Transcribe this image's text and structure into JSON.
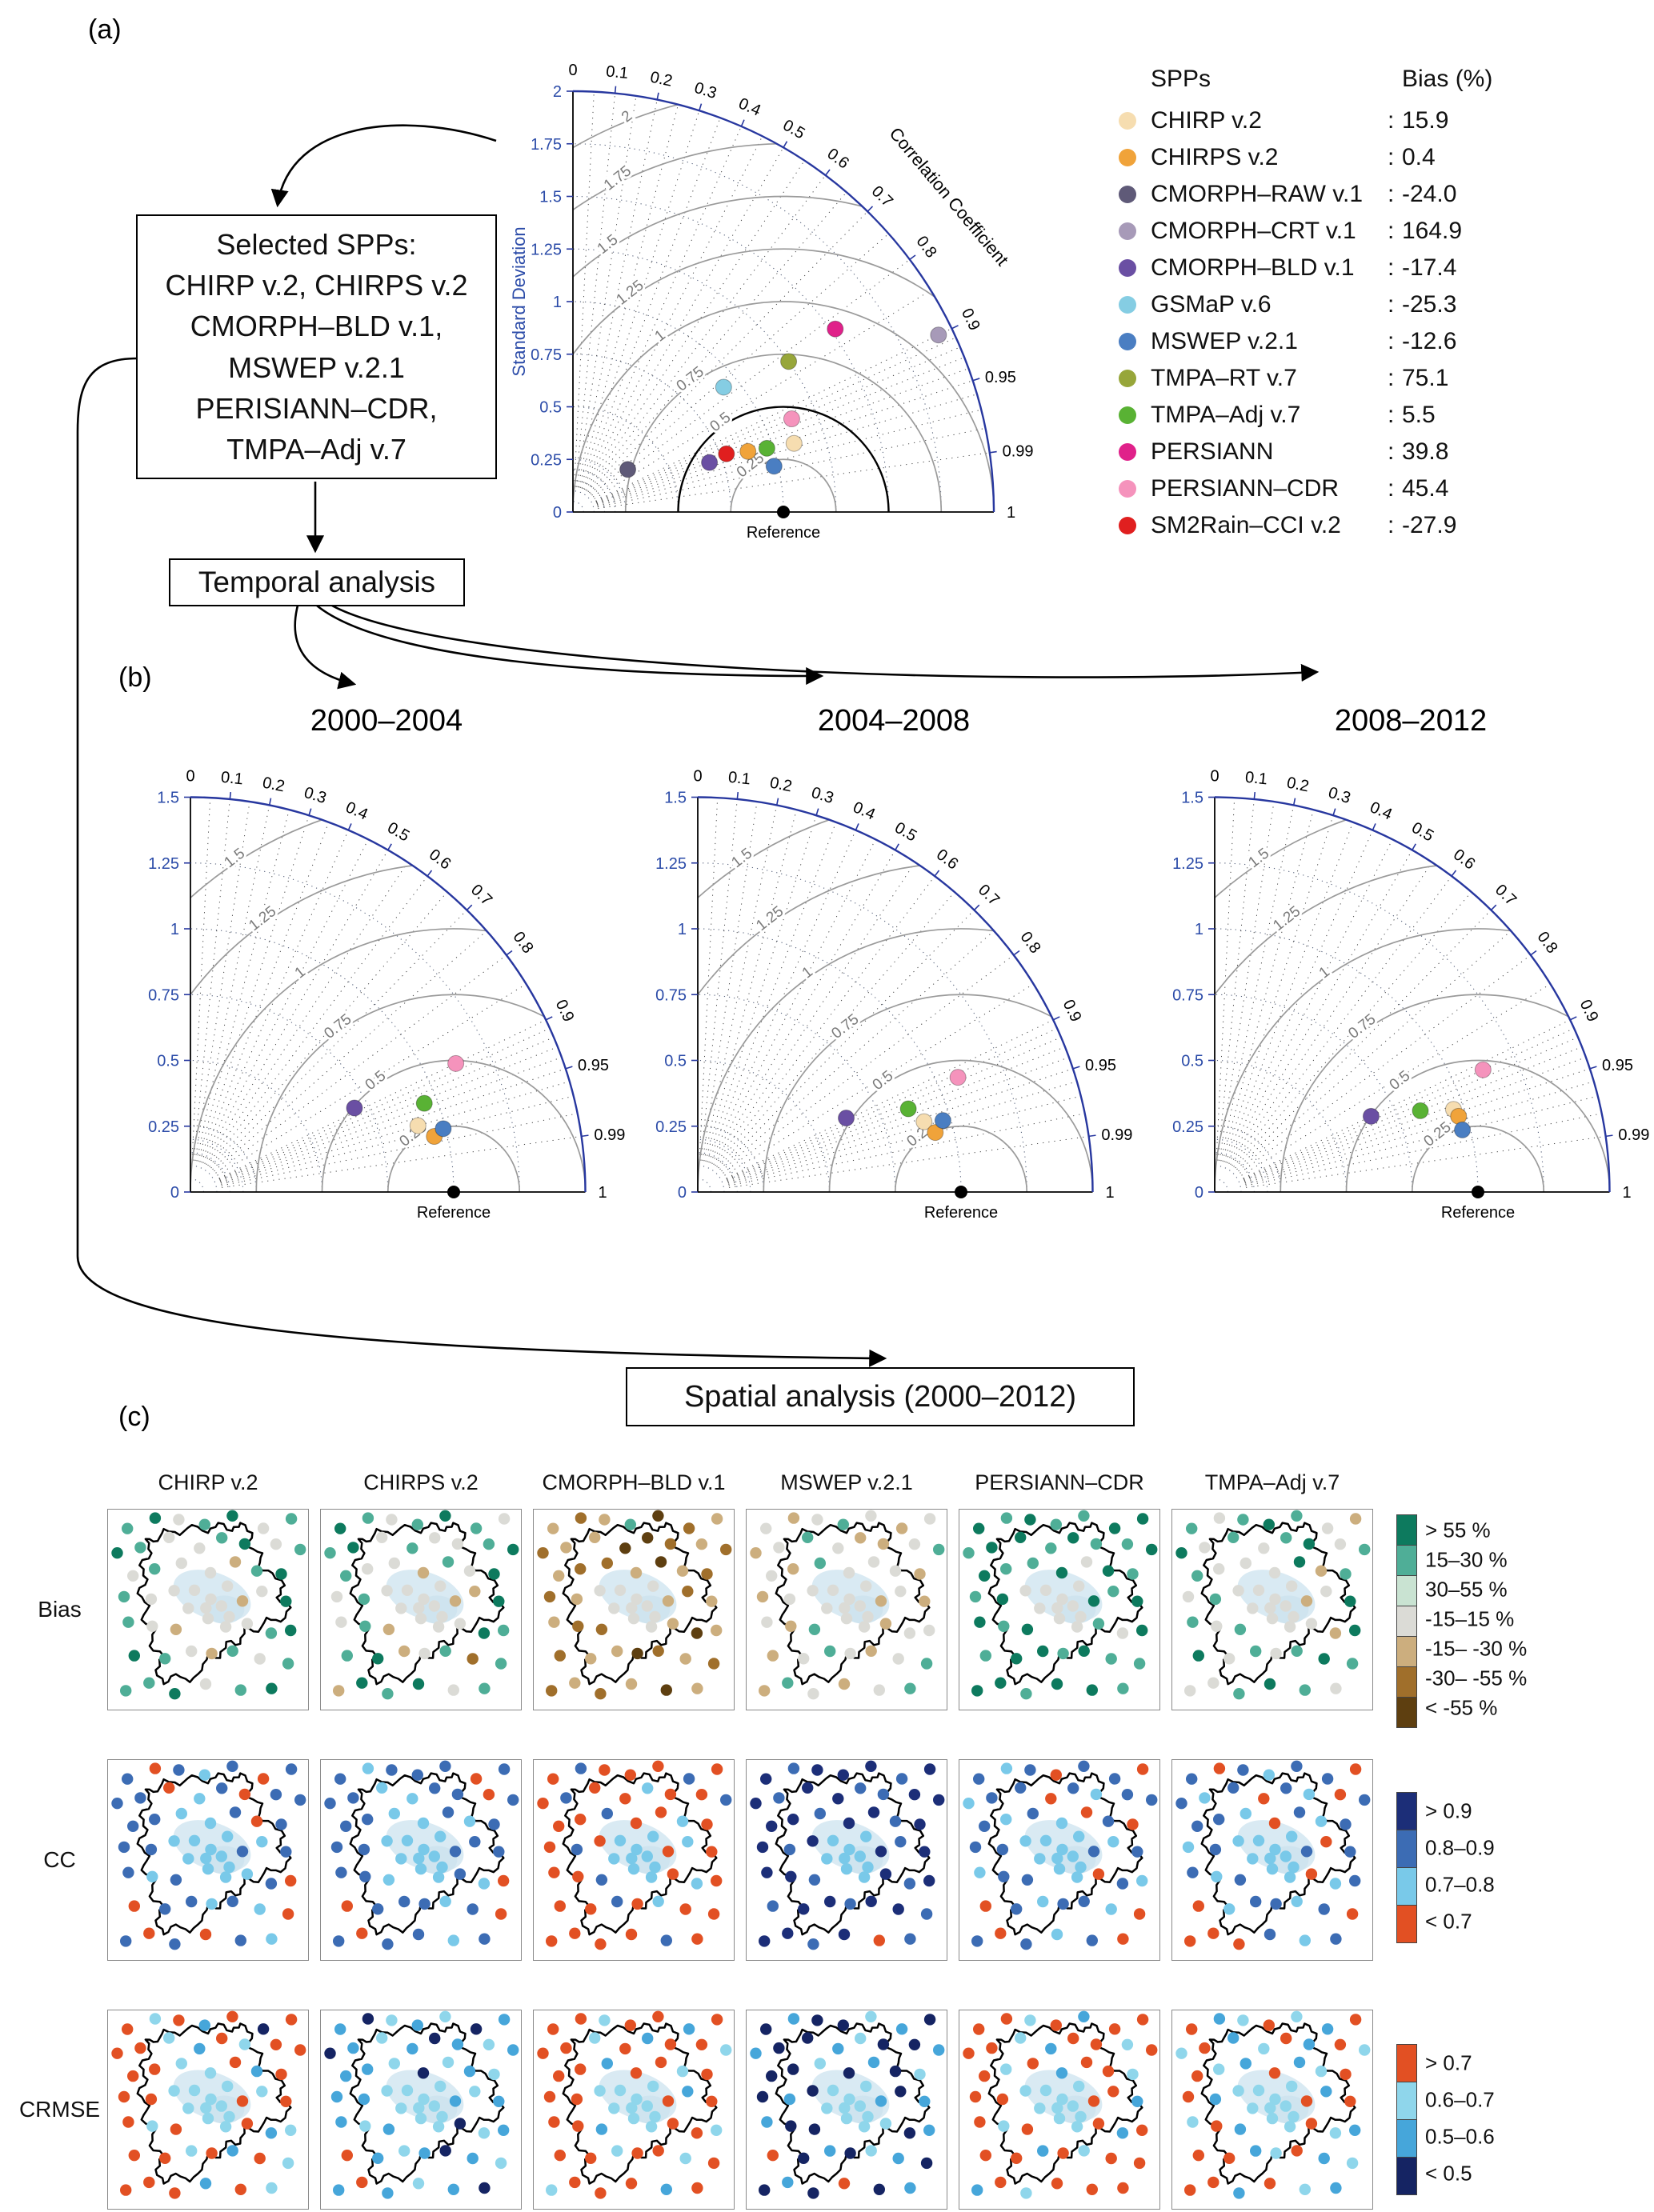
{
  "panel_a": {
    "label": "(a)",
    "selected_box_lines": [
      "Selected SPPs:",
      "CHIRP v.2, CHIRPS v.2",
      "CMORPH–BLD v.1,",
      "MSWEP v.2.1",
      "PERISIANN–CDR,",
      "TMPA–Adj v.7"
    ],
    "temporal_box": "Temporal analysis",
    "legend": {
      "header_spps": "SPPs",
      "header_bias": "Bias (%)",
      "separator": ":",
      "items": [
        {
          "name": "CHIRP v.2",
          "bias": "15.9",
          "color": "#f6ddb0"
        },
        {
          "name": "CHIRPS v.2",
          "bias": "0.4",
          "color": "#f0a33a"
        },
        {
          "name": "CMORPH–RAW v.1",
          "bias": "-24.0",
          "color": "#5f5a78"
        },
        {
          "name": "CMORPH–CRT v.1",
          "bias": "164.9",
          "color": "#a79ab8"
        },
        {
          "name": "CMORPH–BLD v.1",
          "bias": "-17.4",
          "color": "#6a4fa3"
        },
        {
          "name": "GSMaP v.6",
          "bias": "-25.3",
          "color": "#85cde3"
        },
        {
          "name": "MSWEP v.2.1",
          "bias": "-12.6",
          "color": "#4a7ec2"
        },
        {
          "name": "TMPA–RT v.7",
          "bias": "75.1",
          "color": "#97a63a"
        },
        {
          "name": "TMPA–Adj v.7",
          "bias": "5.5",
          "color": "#59b234"
        },
        {
          "name": "PERSIANN",
          "bias": "39.8",
          "color": "#e0218a"
        },
        {
          "name": "PERSIANN–CDR",
          "bias": "45.4",
          "color": "#f593bc"
        },
        {
          "name": "SM2Rain–CCI v.2",
          "bias": "-27.9",
          "color": "#e01f1f"
        }
      ]
    }
  },
  "panel_b": {
    "label": "(b)"
  },
  "panel_c": {
    "label": "(c)",
    "spatial_box": "Spatial analysis (2000–2012)"
  },
  "chart_data": {
    "taylor_main": {
      "type": "scatter",
      "subtype": "taylor-diagram",
      "max_std": 2,
      "ref_std": 1,
      "std_ticks": [
        0,
        0.25,
        0.5,
        0.75,
        1,
        1.25,
        1.5,
        1.75,
        2
      ],
      "corr_ticks": [
        0,
        0.1,
        0.2,
        0.3,
        0.4,
        0.5,
        0.6,
        0.7,
        0.8,
        0.9,
        0.95,
        0.99,
        1
      ],
      "rms_arcs": [
        0.25,
        0.5,
        0.75,
        1,
        1.25,
        1.5,
        1.75,
        2
      ],
      "highlight_rms": 0.5,
      "axis_label_std": "Standard Deviation",
      "axis_label_corr": "Correlation Coefficient",
      "reference_label": "Reference",
      "points": [
        {
          "name": "CHIRP v.2",
          "std": 1.1,
          "corr": 0.955
        },
        {
          "name": "CHIRPS v.2",
          "std": 0.88,
          "corr": 0.945
        },
        {
          "name": "CMORPH–RAW v.1",
          "std": 0.33,
          "corr": 0.79
        },
        {
          "name": "CMORPH–CRT v.1",
          "std": 1.93,
          "corr": 0.9
        },
        {
          "name": "CMORPH–BLD v.1",
          "std": 0.69,
          "corr": 0.94
        },
        {
          "name": "GSMaP v.6",
          "std": 0.93,
          "corr": 0.77
        },
        {
          "name": "MSWEP v.2.1",
          "std": 0.98,
          "corr": 0.975
        },
        {
          "name": "TMPA–RT v.7",
          "std": 1.25,
          "corr": 0.82
        },
        {
          "name": "TMPA–Adj v.7",
          "std": 0.97,
          "corr": 0.95
        },
        {
          "name": "PERSIANN",
          "std": 1.52,
          "corr": 0.82
        },
        {
          "name": "PERSIANN–CDR",
          "std": 1.13,
          "corr": 0.92
        },
        {
          "name": "SM2Rain–CCI v.2",
          "std": 0.78,
          "corr": 0.935
        }
      ]
    },
    "taylor_periods": [
      {
        "title": "2000–2004",
        "type": "scatter",
        "subtype": "taylor-diagram",
        "max_std": 1.5,
        "ref_std": 1,
        "std_ticks": [
          0,
          0.25,
          0.5,
          0.75,
          1,
          1.25,
          1.5
        ],
        "corr_ticks": [
          0,
          0.1,
          0.2,
          0.3,
          0.4,
          0.5,
          0.6,
          0.7,
          0.8,
          0.9,
          0.95,
          0.99,
          1
        ],
        "rms_arcs": [
          0.25,
          0.5,
          0.75,
          1,
          1.25,
          1.5
        ],
        "reference_label": "Reference",
        "points": [
          {
            "name": "CHIRP v.2",
            "std": 0.9,
            "corr": 0.96
          },
          {
            "name": "CHIRPS v.2",
            "std": 0.95,
            "corr": 0.975
          },
          {
            "name": "CMORPH–BLD v.1",
            "std": 0.7,
            "corr": 0.89
          },
          {
            "name": "MSWEP v.2.1",
            "std": 0.99,
            "corr": 0.97
          },
          {
            "name": "PERSIANN–CDR",
            "std": 1.12,
            "corr": 0.9
          },
          {
            "name": "TMPA–Adj v.7",
            "std": 0.95,
            "corr": 0.935
          }
        ]
      },
      {
        "title": "2004–2008",
        "type": "scatter",
        "subtype": "taylor-diagram",
        "max_std": 1.5,
        "ref_std": 1,
        "std_ticks": [
          0,
          0.25,
          0.5,
          0.75,
          1,
          1.25,
          1.5
        ],
        "corr_ticks": [
          0,
          0.1,
          0.2,
          0.3,
          0.4,
          0.5,
          0.6,
          0.7,
          0.8,
          0.9,
          0.95,
          0.99,
          1
        ],
        "rms_arcs": [
          0.25,
          0.5,
          0.75,
          1,
          1.25,
          1.5
        ],
        "reference_label": "Reference",
        "points": [
          {
            "name": "CHIRP v.2",
            "std": 0.9,
            "corr": 0.955
          },
          {
            "name": "CHIRPS v.2",
            "std": 0.93,
            "corr": 0.97
          },
          {
            "name": "CMORPH–BLD v.1",
            "std": 0.63,
            "corr": 0.895
          },
          {
            "name": "MSWEP v.2.1",
            "std": 0.97,
            "corr": 0.96
          },
          {
            "name": "PERSIANN–CDR",
            "std": 1.08,
            "corr": 0.915
          },
          {
            "name": "TMPA–Adj v.7",
            "std": 0.86,
            "corr": 0.93
          }
        ]
      },
      {
        "title": "2008–2012",
        "type": "scatter",
        "subtype": "taylor-diagram",
        "max_std": 1.5,
        "ref_std": 1,
        "std_ticks": [
          0,
          0.25,
          0.5,
          0.75,
          1,
          1.25,
          1.5
        ],
        "corr_ticks": [
          0,
          0.1,
          0.2,
          0.3,
          0.4,
          0.5,
          0.6,
          0.7,
          0.8,
          0.9,
          0.95,
          0.99,
          1
        ],
        "rms_arcs": [
          0.25,
          0.5,
          0.75,
          1,
          1.25,
          1.5
        ],
        "reference_label": "Reference",
        "points": [
          {
            "name": "CHIRP v.2",
            "std": 0.96,
            "corr": 0.945
          },
          {
            "name": "CHIRPS v.2",
            "std": 0.97,
            "corr": 0.955
          },
          {
            "name": "CMORPH–BLD v.1",
            "std": 0.66,
            "corr": 0.9
          },
          {
            "name": "MSWEP v.2.1",
            "std": 0.97,
            "corr": 0.97
          },
          {
            "name": "PERSIANN–CDR",
            "std": 1.12,
            "corr": 0.91
          },
          {
            "name": "TMPA–Adj v.7",
            "std": 0.84,
            "corr": 0.93
          }
        ]
      }
    ],
    "maps": {
      "type": "scatter",
      "subtype": "station-maps",
      "columns": [
        "CHIRP v.2",
        "CHIRPS v.2",
        "CMORPH–BLD v.1",
        "MSWEP v.2.1",
        "PERSIANN–CDR",
        "TMPA–Adj v.7"
      ],
      "rows": [
        "Bias",
        "CC",
        "CRMSE"
      ],
      "scales": {
        "bias": {
          "labels": [
            "> 55 %",
            "15–30 %",
            "30–55 %",
            "-15–15 %",
            "-15– -30 %",
            "-30– -55 %",
            "< -55 %"
          ],
          "colors": [
            "#0d7a5e",
            "#4fae97",
            "#c9e3d2",
            "#dbdbd6",
            "#ccae7e",
            "#a06f2b",
            "#5e3f10"
          ]
        },
        "cc": {
          "labels": [
            "> 0.9",
            "0.8–0.9",
            "0.7–0.8",
            "< 0.7"
          ],
          "colors": [
            "#1c2e78",
            "#3c6cb4",
            "#79c9e9",
            "#e25023"
          ]
        },
        "crmse": {
          "labels": [
            "> 0.7",
            "0.6–0.7",
            "0.5–0.6",
            "< 0.5"
          ],
          "colors": [
            "#e25023",
            "#8fd6eb",
            "#46a6da",
            "#152463"
          ]
        }
      },
      "stations": [
        [
          0.1,
          0.08
        ],
        [
          0.22,
          0.06
        ],
        [
          0.35,
          0.05
        ],
        [
          0.5,
          0.07
        ],
        [
          0.63,
          0.05
        ],
        [
          0.76,
          0.08
        ],
        [
          0.9,
          0.06
        ],
        [
          0.06,
          0.22
        ],
        [
          0.18,
          0.18
        ],
        [
          0.3,
          0.16
        ],
        [
          0.44,
          0.18
        ],
        [
          0.57,
          0.15
        ],
        [
          0.7,
          0.18
        ],
        [
          0.84,
          0.16
        ],
        [
          0.94,
          0.22
        ],
        [
          0.12,
          0.32
        ],
        [
          0.25,
          0.3
        ],
        [
          0.38,
          0.28
        ],
        [
          0.5,
          0.3
        ],
        [
          0.62,
          0.28
        ],
        [
          0.75,
          0.3
        ],
        [
          0.88,
          0.32
        ],
        [
          0.08,
          0.45
        ],
        [
          0.2,
          0.43
        ],
        [
          0.33,
          0.42
        ],
        [
          0.45,
          0.4
        ],
        [
          0.52,
          0.44
        ],
        [
          0.58,
          0.4
        ],
        [
          0.66,
          0.44
        ],
        [
          0.78,
          0.42
        ],
        [
          0.9,
          0.46
        ],
        [
          0.48,
          0.48
        ],
        [
          0.55,
          0.5
        ],
        [
          0.61,
          0.52
        ],
        [
          0.42,
          0.5
        ],
        [
          0.5,
          0.55
        ],
        [
          0.57,
          0.57
        ],
        [
          0.1,
          0.58
        ],
        [
          0.24,
          0.57
        ],
        [
          0.35,
          0.6
        ],
        [
          0.68,
          0.58
        ],
        [
          0.8,
          0.6
        ],
        [
          0.92,
          0.62
        ],
        [
          0.15,
          0.72
        ],
        [
          0.28,
          0.74
        ],
        [
          0.4,
          0.72
        ],
        [
          0.52,
          0.7
        ],
        [
          0.64,
          0.72
        ],
        [
          0.76,
          0.74
        ],
        [
          0.88,
          0.76
        ],
        [
          0.2,
          0.88
        ],
        [
          0.35,
          0.9
        ],
        [
          0.5,
          0.88
        ],
        [
          0.65,
          0.9
        ],
        [
          0.8,
          0.88
        ],
        [
          0.1,
          0.92
        ]
      ],
      "basin_outline": [
        [
          0.28,
          0.1
        ],
        [
          0.36,
          0.13
        ],
        [
          0.42,
          0.08
        ],
        [
          0.5,
          0.12
        ],
        [
          0.55,
          0.07
        ],
        [
          0.62,
          0.11
        ],
        [
          0.66,
          0.07
        ],
        [
          0.72,
          0.12
        ],
        [
          0.7,
          0.19
        ],
        [
          0.77,
          0.22
        ],
        [
          0.75,
          0.29
        ],
        [
          0.82,
          0.32
        ],
        [
          0.88,
          0.38
        ],
        [
          0.84,
          0.44
        ],
        [
          0.91,
          0.49
        ],
        [
          0.86,
          0.56
        ],
        [
          0.79,
          0.54
        ],
        [
          0.75,
          0.61
        ],
        [
          0.68,
          0.59
        ],
        [
          0.66,
          0.67
        ],
        [
          0.59,
          0.66
        ],
        [
          0.56,
          0.74
        ],
        [
          0.5,
          0.72
        ],
        [
          0.47,
          0.8
        ],
        [
          0.41,
          0.86
        ],
        [
          0.34,
          0.82
        ],
        [
          0.28,
          0.87
        ],
        [
          0.24,
          0.8
        ],
        [
          0.28,
          0.73
        ],
        [
          0.21,
          0.68
        ],
        [
          0.24,
          0.6
        ],
        [
          0.17,
          0.55
        ],
        [
          0.21,
          0.48
        ],
        [
          0.15,
          0.42
        ],
        [
          0.2,
          0.35
        ],
        [
          0.16,
          0.28
        ],
        [
          0.22,
          0.22
        ],
        [
          0.19,
          0.15
        ],
        [
          0.25,
          0.16
        ]
      ],
      "values": {
        "Bias": {
          "CHIRP v.2": "10310310133103131334101333334303333331343100134131103101",
          "CHIRPS v.2": "01310131031331013341303133334403333333143011043151010314",
          "CMORPH–BLD v.1": "45416545446654545546455433334543333334554645446545454645",
          "MSWEP v.2.1": "34313434313443134133344333334343333333414334313431134314",
          "PERSIANN–CDR": "01011001001011001103011033330103333330101301001011010010",
          "TMPA–Adj v.7": "13101340313103113330413133334303333331313400313101310133"
        },
        "CC": {
          "CHIRP v.2": "13121311132131111221311122221212222221212133112123313121",
          "CHIRPS v.2": "12111311122113111221211122221112222221121233111213311211",
          "CMORPH–BLD v.1": "31333133133233133133233132223232222223313233313233333133",
          "MSWEP v.2.1": "01000100100110000100100102220102222220010101001001010310",
          "PERSIANN–CDR": "12131132113121112123131122221212222222113123121123312131",
          "TMPA–Adj v.7": "13121131213123111231212122221312222221213213211213331213"
        },
        "CRMSE": {
          "CHIRP v.2": "01020300012010000110200011110101111110100210010201002010",
          "CHIRPS v.2": "23121323212321222131212211112121111112123120212321021232",
          "CMORPH–BLD v.1": "00100200010200100200100011110201111110020010010010000201",
          "MSWEP v.2.1": "32331232332133233132313231112321111112331320323123230323",
          "PERSIANN–CDR": "00102000012001001020010011110021111110100200020100010002",
          "TMPA–Adj v.7": "02101201021020101202100211110201111111020120021021020120"
        }
      }
    }
  }
}
